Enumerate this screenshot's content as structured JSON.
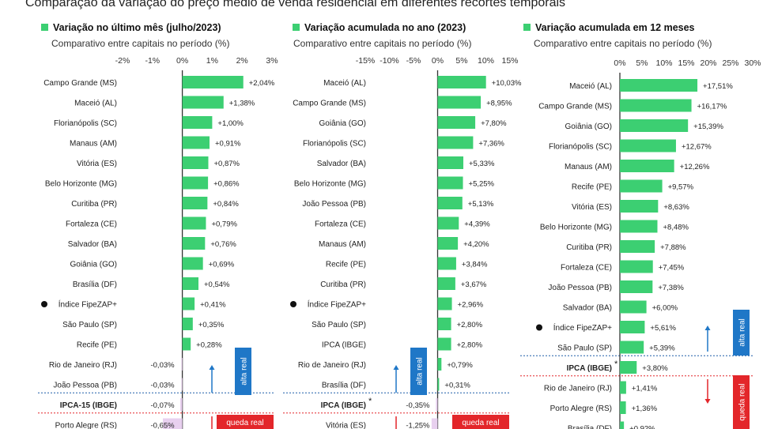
{
  "page_title": "Comparação da variação do preço médio de venda residencial em diferentes recortes temporais",
  "colors": {
    "bar_positive": "#3ccf72",
    "bar_negative": "#e8d0ef",
    "alta_real": "#1f77c7",
    "queda_real": "#e3262a",
    "axis": "#333333",
    "dotted_blue": "#1f5fa8",
    "dotted_red": "#e3262a"
  },
  "chart_data": [
    {
      "type": "bar",
      "title": "Variação no último mês (julho/2023)",
      "subtitle": "Comparativo entre capitais no período (%)",
      "xlim": [
        -2,
        3
      ],
      "ticks": [
        -2,
        -1,
        0,
        1,
        2,
        3
      ],
      "tick_labels": [
        "-2%",
        "-1%",
        "0%",
        "1%",
        "2%",
        "3%"
      ],
      "categories": [
        "Campo Grande (MS)",
        "Maceió (AL)",
        "Florianópolis (SC)",
        "Manaus (AM)",
        "Vitória (ES)",
        "Belo Horizonte (MG)",
        "Curitiba (PR)",
        "Fortaleza (CE)",
        "Salvador (BA)",
        "Goiânia (GO)",
        "Brasília (DF)",
        "Índice FipeZAP+",
        "São Paulo (SP)",
        "Recife (PE)",
        "Rio de Janeiro (RJ)",
        "João Pessoa (PB)",
        "IPCA-15 (IBGE)",
        "Porto Alegre (RS)"
      ],
      "values": [
        2.04,
        1.38,
        1.0,
        0.91,
        0.87,
        0.86,
        0.84,
        0.79,
        0.76,
        0.69,
        0.54,
        0.41,
        0.35,
        0.28,
        -0.03,
        -0.03,
        -0.07,
        -0.65
      ],
      "value_labels": [
        "+2,04%",
        "+1,38%",
        "+1,00%",
        "+0,91%",
        "+0,87%",
        "+0,86%",
        "+0,84%",
        "+0,79%",
        "+0,76%",
        "+0,69%",
        "+0,54%",
        "+0,41%",
        "+0,35%",
        "+0,28%",
        "-0,03%",
        "-0,03%",
        "-0,07%",
        "-0,65%"
      ],
      "index_category": "Índice FipeZAP+",
      "reference_category": "IPCA-15 (IBGE)",
      "reference_asterisk": "",
      "alta_label": "alta real",
      "queda_label": "queda real"
    },
    {
      "type": "bar",
      "title": "Variação acumulada no ano (2023)",
      "subtitle": "Comparativo entre capitais no período (%)",
      "xlim": [
        -15,
        15
      ],
      "ticks": [
        -15,
        -10,
        -5,
        0,
        5,
        10,
        15
      ],
      "tick_labels": [
        "-15%",
        "-10%",
        "-5%",
        "0%",
        "5%",
        "10%",
        "15%"
      ],
      "categories": [
        "Maceió (AL)",
        "Campo Grande (MS)",
        "Goiânia (GO)",
        "Florianópolis (SC)",
        "Salvador (BA)",
        "Belo Horizonte (MG)",
        "João Pessoa (PB)",
        "Fortaleza (CE)",
        "Manaus (AM)",
        "Recife (PE)",
        "Curitiba (PR)",
        "Índice FipeZAP+",
        "São Paulo (SP)",
        "IPCA (IBGE)",
        "Rio de Janeiro (RJ)",
        "Brasília (DF)",
        "IPCA (IBGE)",
        "Vitória (ES)"
      ],
      "values": [
        10.03,
        8.95,
        7.8,
        7.36,
        5.33,
        5.25,
        5.13,
        4.39,
        4.2,
        3.84,
        3.67,
        2.96,
        2.8,
        2.8,
        0.79,
        0.31,
        -0.35,
        -1.25
      ],
      "value_labels": [
        "+10,03%",
        "+8,95%",
        "+7,80%",
        "+7,36%",
        "+5,33%",
        "+5,25%",
        "+5,13%",
        "+4,39%",
        "+4,20%",
        "+3,84%",
        "+3,67%",
        "+2,96%",
        "+2,80%",
        "+2,80%",
        "+0,79%",
        "+0,31%",
        "-0,35%",
        "-1,25%"
      ],
      "index_category": "Índice FipeZAP+",
      "reference_row": 16,
      "reference_asterisk": "*",
      "alta_label": "alta real",
      "queda_label": "queda real"
    },
    {
      "type": "bar",
      "title": "Variação acumulada em 12 meses",
      "subtitle": "Comparativo entre capitais no período (%)",
      "xlim": [
        0,
        30
      ],
      "ticks": [
        0,
        5,
        10,
        15,
        20,
        25,
        30
      ],
      "tick_labels": [
        "0%",
        "5%",
        "10%",
        "15%",
        "20%",
        "25%",
        "30%"
      ],
      "categories": [
        "Maceió (AL)",
        "Campo Grande (MS)",
        "Goiânia (GO)",
        "Florianópolis (SC)",
        "Manaus (AM)",
        "Recife (PE)",
        "Vitória (ES)",
        "Belo Horizonte (MG)",
        "Curitiba (PR)",
        "Fortaleza (CE)",
        "João Pessoa (PB)",
        "Salvador (BA)",
        "Índice FipeZAP+",
        "São Paulo (SP)",
        "IPCA (IBGE)",
        "Rio de Janeiro (RJ)",
        "Porto Alegre (RS)",
        "Brasília (DF)"
      ],
      "values": [
        17.51,
        16.17,
        15.39,
        12.67,
        12.26,
        9.57,
        8.63,
        8.48,
        7.88,
        7.45,
        7.38,
        6.0,
        5.61,
        5.39,
        3.8,
        1.41,
        1.36,
        0.92
      ],
      "value_labels": [
        "+17,51%",
        "+16,17%",
        "+15,39%",
        "+12,67%",
        "+12,26%",
        "+9,57%",
        "+8,63%",
        "+8,48%",
        "+7,88%",
        "+7,45%",
        "+7,38%",
        "+6,00%",
        "+5,61%",
        "+5,39%",
        "+3,80%",
        "+1,41%",
        "+1,36%",
        "+0,92%"
      ],
      "index_category": "Índice FipeZAP+",
      "reference_row": 14,
      "reference_asterisk": "*",
      "alta_label": "alta real",
      "queda_label": "queda real"
    }
  ]
}
